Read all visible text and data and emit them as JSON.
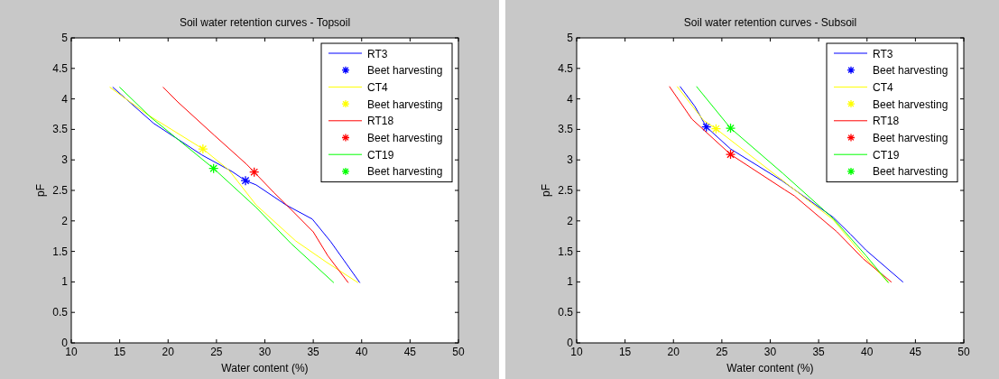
{
  "chart_data": [
    {
      "type": "line",
      "title": "Soil water retention curves - Topsoil",
      "xlabel": "Water content (%)",
      "ylabel": "pF",
      "xlim": [
        10,
        50
      ],
      "ylim": [
        0,
        5
      ],
      "xticks": [
        10,
        15,
        20,
        25,
        30,
        35,
        40,
        45,
        50
      ],
      "yticks": [
        0,
        0.5,
        1,
        1.5,
        2,
        2.5,
        3,
        3.5,
        4,
        4.5,
        5
      ],
      "grid": false,
      "legend": "top right",
      "series": [
        {
          "name": "RT3",
          "color": "#0000ff",
          "x": [
            14.3,
            18.5,
            23.5,
            26.6,
            28.0,
            29.1,
            32.2,
            34.9,
            36.8,
            39.8
          ],
          "values": [
            4.19,
            3.6,
            3.08,
            2.81,
            2.66,
            2.59,
            2.26,
            2.03,
            1.66,
            0.99
          ]
        },
        {
          "type": "scatter",
          "marker": "cross",
          "name": "Beet harvesting",
          "color": "#0000ff",
          "x": [
            28.0
          ],
          "values": [
            2.66
          ]
        },
        {
          "name": "CT4",
          "color": "#ffff00",
          "x": [
            14.0,
            17.9,
            23.6,
            26.3,
            29.1,
            33.2,
            36.3,
            39.6
          ],
          "values": [
            4.19,
            3.74,
            3.18,
            2.83,
            2.26,
            1.67,
            1.33,
            0.99
          ]
        },
        {
          "type": "scatter",
          "marker": "cross",
          "name": "Beet harvesting",
          "color": "#ffff00",
          "x": [
            23.6
          ],
          "values": [
            3.18
          ]
        },
        {
          "name": "RT18",
          "color": "#ff0000",
          "x": [
            19.5,
            21.0,
            24.8,
            28.1,
            28.9,
            30.9,
            32.5,
            35.0,
            36.5,
            38.6
          ],
          "values": [
            4.19,
            3.95,
            3.4,
            2.93,
            2.8,
            2.47,
            2.22,
            1.82,
            1.43,
            0.99
          ]
        },
        {
          "type": "scatter",
          "marker": "cross",
          "name": "Beet harvesting",
          "color": "#ff0000",
          "x": [
            28.9
          ],
          "values": [
            2.8
          ]
        },
        {
          "name": "CT19",
          "color": "#00ff00",
          "x": [
            15.0,
            18.2,
            24.7,
            29.1,
            32.7,
            37.1
          ],
          "values": [
            4.19,
            3.7,
            2.86,
            2.22,
            1.63,
            0.99
          ]
        },
        {
          "type": "scatter",
          "marker": "cross",
          "name": "Beet harvesting",
          "color": "#00ff00",
          "x": [
            24.7
          ],
          "values": [
            2.86
          ]
        }
      ]
    },
    {
      "type": "line",
      "title": "Soil water retention curves - Subsoil",
      "xlabel": "Water content (%)",
      "ylabel": "pF",
      "xlim": [
        10,
        50
      ],
      "ylim": [
        0,
        5
      ],
      "xticks": [
        10,
        15,
        20,
        25,
        30,
        35,
        40,
        45,
        50
      ],
      "yticks": [
        0,
        0.5,
        1,
        1.5,
        2,
        2.5,
        3,
        3.5,
        4,
        4.5,
        5
      ],
      "grid": false,
      "legend": "top right",
      "series": [
        {
          "name": "RT3",
          "color": "#0000ff",
          "x": [
            20.7,
            22.2,
            23.4,
            25.9,
            31.2,
            36.5,
            38.3,
            39.9,
            43.7
          ],
          "values": [
            4.2,
            3.88,
            3.54,
            3.18,
            2.66,
            2.06,
            1.78,
            1.52,
            1.0
          ]
        },
        {
          "type": "scatter",
          "marker": "cross",
          "name": "Beet harvesting",
          "color": "#0000ff",
          "x": [
            23.4
          ],
          "values": [
            3.54
          ]
        },
        {
          "name": "CT4",
          "color": "#ffff00",
          "x": [
            20.4,
            23.1,
            24.4,
            31.3,
            36.5,
            39.6,
            42.2
          ],
          "values": [
            4.2,
            3.65,
            3.51,
            2.66,
            2.02,
            1.43,
            0.99
          ]
        },
        {
          "type": "scatter",
          "marker": "cross",
          "name": "Beet harvesting",
          "color": "#ffff00",
          "x": [
            24.4
          ],
          "values": [
            3.51
          ]
        },
        {
          "name": "RT18",
          "color": "#ff0000",
          "x": [
            19.6,
            21.9,
            25.9,
            31.5,
            32.5,
            36.9,
            39.6,
            42.5
          ],
          "values": [
            4.2,
            3.67,
            3.09,
            2.51,
            2.41,
            1.82,
            1.38,
            1.0
          ]
        },
        {
          "type": "scatter",
          "marker": "cross",
          "name": "Beet harvesting",
          "color": "#ff0000",
          "x": [
            25.9
          ],
          "values": [
            3.09
          ]
        },
        {
          "name": "CT19",
          "color": "#00ff00",
          "x": [
            22.4,
            25.9,
            31.3,
            36.5,
            39.9,
            42.2
          ],
          "values": [
            4.2,
            3.52,
            2.78,
            2.04,
            1.43,
            0.99
          ]
        },
        {
          "type": "scatter",
          "marker": "cross",
          "name": "Beet harvesting",
          "color": "#00ff00",
          "x": [
            25.9
          ],
          "values": [
            3.52
          ]
        }
      ]
    }
  ]
}
